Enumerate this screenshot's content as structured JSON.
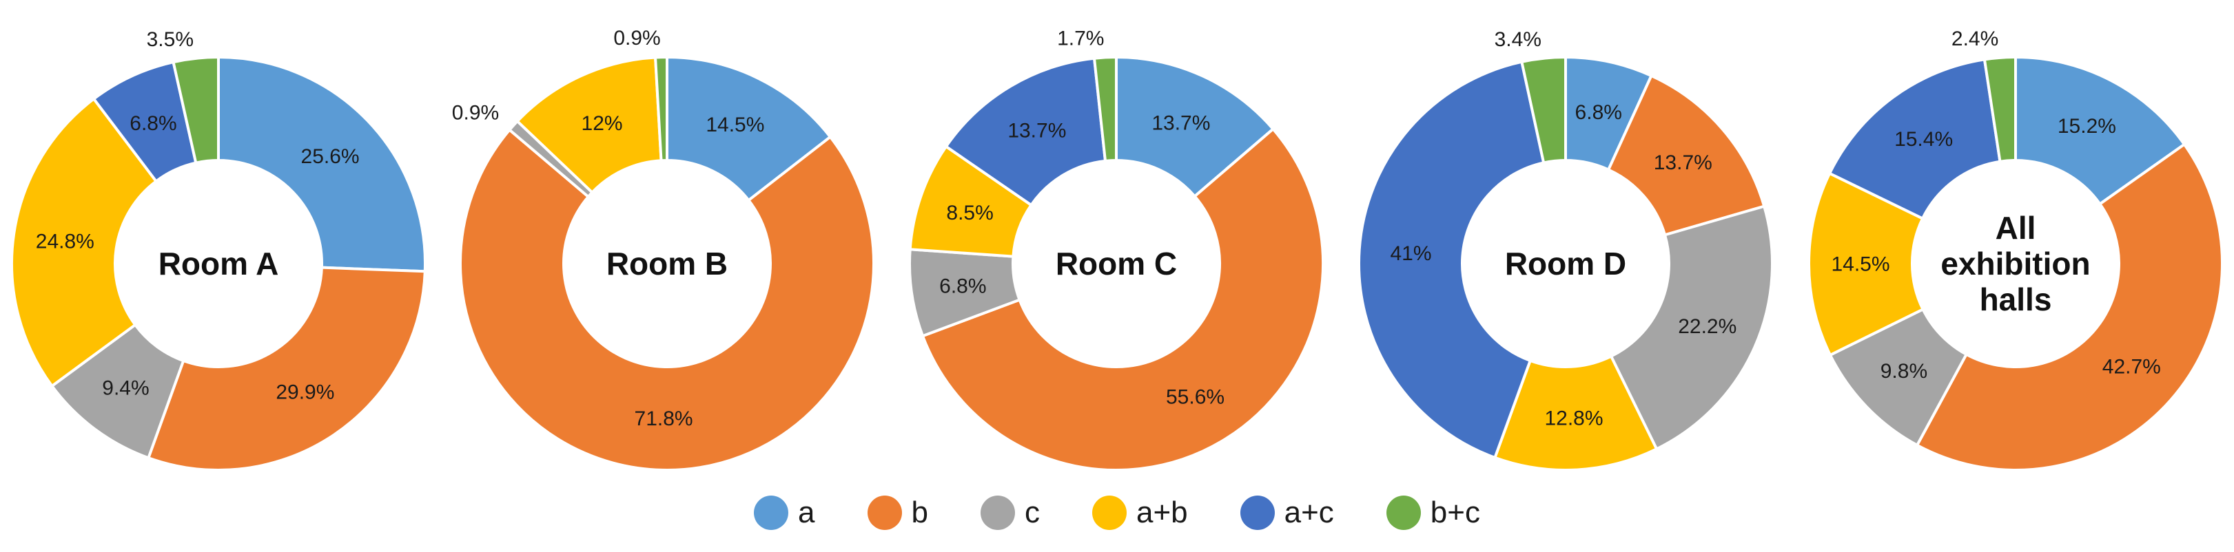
{
  "colors": {
    "a": "#5B9BD5",
    "b": "#ED7D31",
    "c": "#A5A5A5",
    "a+b": "#FFC000",
    "a+c": "#4472C4",
    "b+c": "#70AD47"
  },
  "legend": [
    {
      "key": "a",
      "label": "a"
    },
    {
      "key": "b",
      "label": "b"
    },
    {
      "key": "c",
      "label": "c"
    },
    {
      "key": "a+b",
      "label": "a+b"
    },
    {
      "key": "a+c",
      "label": "a+c"
    },
    {
      "key": "b+c",
      "label": "b+c"
    }
  ],
  "chart_data": [
    {
      "type": "pie",
      "title": "Room A",
      "center_label": [
        "Room A"
      ],
      "categories": [
        "a",
        "b",
        "c",
        "a+b",
        "a+c",
        "b+c"
      ],
      "values": [
        25.6,
        29.9,
        9.4,
        24.8,
        6.8,
        3.5
      ],
      "labels": [
        "25.6%",
        "29.9%",
        "9.4%",
        "24.8%",
        "6.8%",
        "3.5%"
      ]
    },
    {
      "type": "pie",
      "title": "Room B",
      "center_label": [
        "Room B"
      ],
      "categories": [
        "a",
        "b",
        "c",
        "a+b",
        "a+c",
        "b+c"
      ],
      "values": [
        14.5,
        71.8,
        0.9,
        12,
        0,
        0.9
      ],
      "labels": [
        "14.5%",
        "71.8%",
        "0.9%",
        "12%",
        "",
        "0.9%"
      ]
    },
    {
      "type": "pie",
      "title": "Room C",
      "center_label": [
        "Room C"
      ],
      "categories": [
        "a",
        "b",
        "c",
        "a+b",
        "a+c",
        "b+c"
      ],
      "values": [
        13.7,
        55.6,
        6.8,
        8.5,
        13.7,
        1.7
      ],
      "labels": [
        "13.7%",
        "55.6%",
        "6.8%",
        "8.5%",
        "13.7%",
        "1.7%"
      ]
    },
    {
      "type": "pie",
      "title": "Room D",
      "center_label": [
        "Room D"
      ],
      "categories": [
        "a",
        "b",
        "c",
        "a+b",
        "a+c",
        "b+c"
      ],
      "values": [
        6.8,
        13.7,
        22.2,
        12.8,
        41,
        3.4
      ],
      "labels": [
        "6.8%",
        "13.7%",
        "22.2%",
        "12.8%",
        "41%",
        "3.4%"
      ]
    },
    {
      "type": "pie",
      "title": "All exhibition halls",
      "center_label": [
        "All",
        "exhibition",
        "halls"
      ],
      "categories": [
        "a",
        "b",
        "c",
        "a+b",
        "a+c",
        "b+c"
      ],
      "values": [
        15.2,
        42.7,
        9.8,
        14.5,
        15.4,
        2.4
      ],
      "labels": [
        "15.2%",
        "42.7%",
        "9.8%",
        "14.5%",
        "15.4%",
        "2.4%"
      ]
    }
  ]
}
